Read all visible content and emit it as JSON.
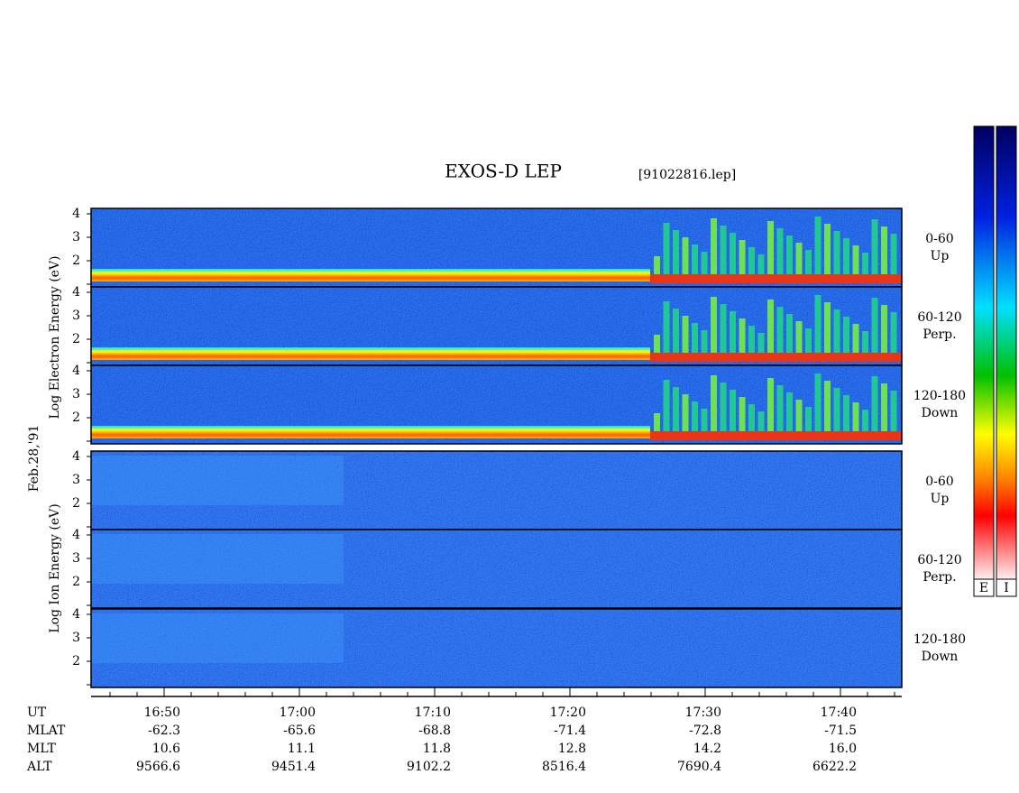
{
  "title": "EXOS-D LEP",
  "file": "[91022816.lep]",
  "date_label": "Feb.28,'91",
  "electron_axis_label": "Log Electron Energy (eV)",
  "ion_axis_label": "Log Ion Energy (eV)",
  "yticks": [
    2,
    3,
    4
  ],
  "panels": [
    {
      "pitch": "0-60",
      "direction": "Up"
    },
    {
      "pitch": "60-120",
      "direction": "Perp."
    },
    {
      "pitch": "120-180",
      "direction": "Down"
    },
    {
      "pitch": "0-60",
      "direction": "Up"
    },
    {
      "pitch": "60-120",
      "direction": "Perp."
    },
    {
      "pitch": "120-180",
      "direction": "Down"
    }
  ],
  "rows": [
    {
      "name": "UT",
      "values": [
        "16:50",
        "17:00",
        "17:10",
        "17:20",
        "17:30",
        "17:40"
      ]
    },
    {
      "name": "MLAT",
      "values": [
        "-62.3",
        "-65.6",
        "-68.8",
        "-71.4",
        "-72.8",
        "-71.5"
      ]
    },
    {
      "name": "MLT",
      "values": [
        "10.6",
        "11.1",
        "11.8",
        "12.8",
        "14.2",
        "16.0"
      ]
    },
    {
      "name": "ALT",
      "values": [
        "9566.6",
        "9451.4",
        "9102.2",
        "8516.4",
        "7690.4",
        "6622.2"
      ]
    }
  ],
  "colorbar_labels": [
    "E",
    "I"
  ]
}
